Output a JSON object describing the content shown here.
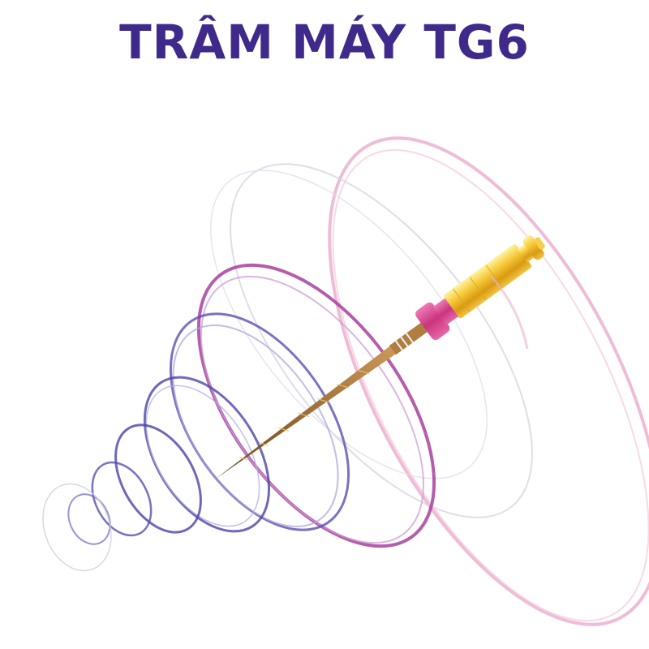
{
  "title": "TRÂM MÁY TG6",
  "colors": {
    "title": "#3f2a8c",
    "swirl_violet": "#5b4fb0",
    "swirl_magenta": "#a0399a",
    "swirl_pink": "#e08ab8",
    "handle_gold": "#f1b928",
    "stopper_pink": "#d64c9a",
    "file_bronze": "#9a6a2e"
  },
  "illustration": {
    "subject": "endodontic-rotary-file",
    "background_effect": "spiral-swirl-rings"
  }
}
